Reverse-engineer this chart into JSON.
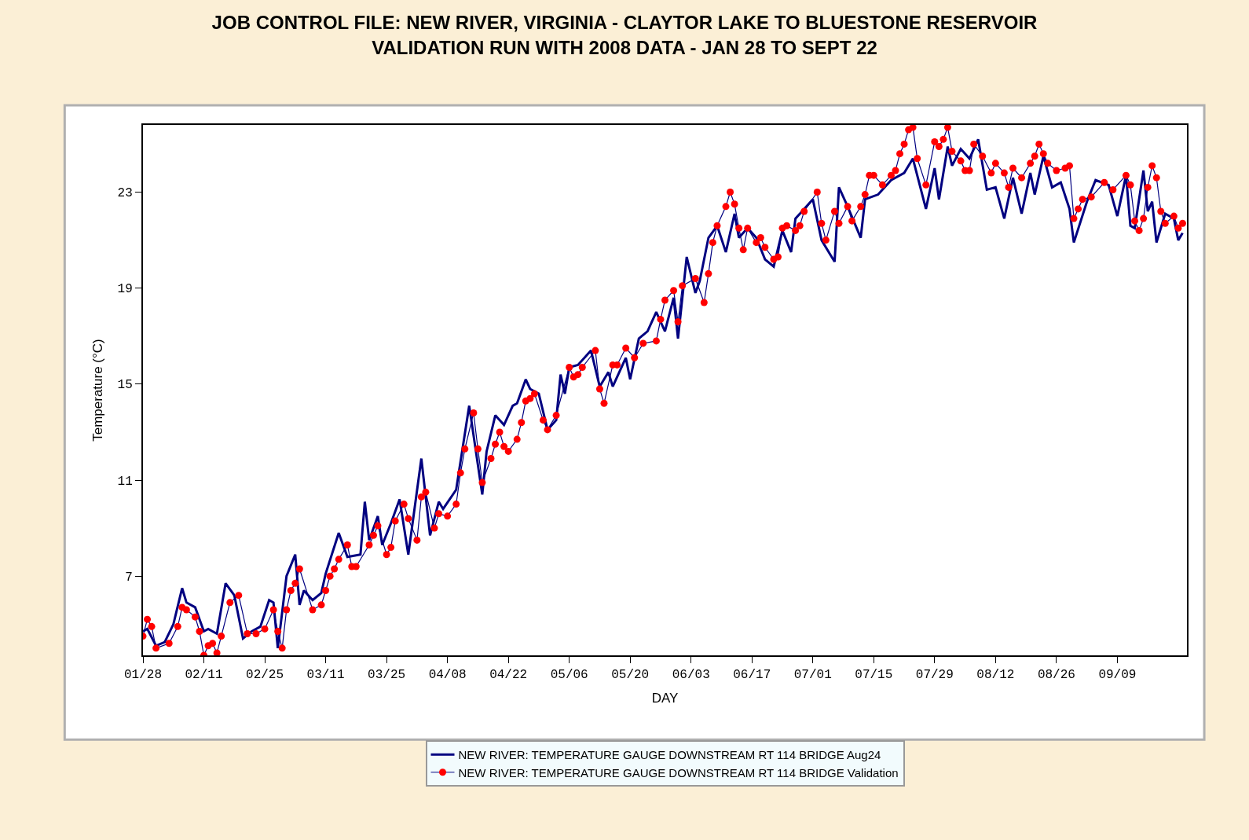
{
  "chart_data": {
    "type": "line",
    "title": "JOB CONTROL FILE: NEW RIVER, VIRGINIA - CLAYTOR LAKE TO BLUESTONE RESERVOIR\nVALIDATION RUN WITH 2008 DATA - JAN 28 TO SEPT 22",
    "xlabel": "DAY",
    "ylabel": "Temperature (°C)",
    "xlim": [
      "2008-01-28",
      "2008-09-24"
    ],
    "xticks": [
      {
        "value": "2008-01-28",
        "label": "01/28"
      },
      {
        "value": "2008-02-11",
        "label": "02/11"
      },
      {
        "value": "2008-02-25",
        "label": "02/25"
      },
      {
        "value": "2008-03-10",
        "label": "03/11"
      },
      {
        "value": "2008-03-24",
        "label": "03/25"
      },
      {
        "value": "2008-04-07",
        "label": "04/08"
      },
      {
        "value": "2008-04-21",
        "label": "04/22"
      },
      {
        "value": "2008-05-05",
        "label": "05/06"
      },
      {
        "value": "2008-05-19",
        "label": "05/20"
      },
      {
        "value": "2008-06-02",
        "label": "06/03"
      },
      {
        "value": "2008-06-16",
        "label": "06/17"
      },
      {
        "value": "2008-06-30",
        "label": "07/01"
      },
      {
        "value": "2008-07-14",
        "label": "07/15"
      },
      {
        "value": "2008-07-28",
        "label": "07/29"
      },
      {
        "value": "2008-08-11",
        "label": "08/12"
      },
      {
        "value": "2008-08-25",
        "label": "08/26"
      },
      {
        "value": "2008-09-08",
        "label": "09/09"
      }
    ],
    "ylim": [
      3.7,
      25.8
    ],
    "yticks": [
      7,
      11,
      15,
      19,
      23
    ],
    "legend": "bottom",
    "series": [
      {
        "name": "NEW RIVER: TEMPERATURE GAUGE DOWNSTREAM RT 114 BRIDGE Aug24",
        "color": "#000080",
        "marker": "none",
        "x": [
          "2008-01-28",
          "2008-01-29",
          "2008-01-31",
          "2008-02-02",
          "2008-02-04",
          "2008-02-06",
          "2008-02-07",
          "2008-02-09",
          "2008-02-11",
          "2008-02-12",
          "2008-02-14",
          "2008-02-16",
          "2008-02-18",
          "2008-02-20",
          "2008-02-22",
          "2008-02-24",
          "2008-02-26",
          "2008-02-27",
          "2008-02-28",
          "2008-03-01",
          "2008-03-03",
          "2008-03-04",
          "2008-03-05",
          "2008-03-07",
          "2008-03-09",
          "2008-03-10",
          "2008-03-13",
          "2008-03-15",
          "2008-03-18",
          "2008-03-19",
          "2008-03-20",
          "2008-03-22",
          "2008-03-23",
          "2008-03-25",
          "2008-03-27",
          "2008-03-29",
          "2008-04-01",
          "2008-04-03",
          "2008-04-05",
          "2008-04-06",
          "2008-04-09",
          "2008-04-12",
          "2008-04-15",
          "2008-04-16",
          "2008-04-18",
          "2008-04-20",
          "2008-04-22",
          "2008-04-23",
          "2008-04-25",
          "2008-04-26",
          "2008-04-28",
          "2008-04-30",
          "2008-05-02",
          "2008-05-03",
          "2008-05-04",
          "2008-05-05",
          "2008-05-07",
          "2008-05-10",
          "2008-05-12",
          "2008-05-14",
          "2008-05-15",
          "2008-05-18",
          "2008-05-19",
          "2008-05-21",
          "2008-05-23",
          "2008-05-25",
          "2008-05-27",
          "2008-05-29",
          "2008-05-30",
          "2008-06-01",
          "2008-06-03",
          "2008-06-04",
          "2008-06-06",
          "2008-06-08",
          "2008-06-10",
          "2008-06-12",
          "2008-06-13",
          "2008-06-15",
          "2008-06-17",
          "2008-06-19",
          "2008-06-21",
          "2008-06-23",
          "2008-06-25",
          "2008-06-26",
          "2008-06-30",
          "2008-07-02",
          "2008-07-04",
          "2008-07-05",
          "2008-07-06",
          "2008-07-08",
          "2008-07-11",
          "2008-07-12",
          "2008-07-15",
          "2008-07-18",
          "2008-07-21",
          "2008-07-23",
          "2008-07-26",
          "2008-07-28",
          "2008-07-29",
          "2008-07-31",
          "2008-08-01",
          "2008-08-03",
          "2008-08-05",
          "2008-08-07",
          "2008-08-09",
          "2008-08-11",
          "2008-08-13",
          "2008-08-15",
          "2008-08-17",
          "2008-08-19",
          "2008-08-20",
          "2008-08-22",
          "2008-08-24",
          "2008-08-26",
          "2008-08-28",
          "2008-08-29",
          "2008-09-01",
          "2008-09-03",
          "2008-09-06",
          "2008-09-08",
          "2008-09-10",
          "2008-09-11",
          "2008-09-12",
          "2008-09-14",
          "2008-09-15",
          "2008-09-16",
          "2008-09-17",
          "2008-09-19",
          "2008-09-21",
          "2008-09-22",
          "2008-09-23"
        ],
        "values": [
          4.7,
          4.8,
          4.1,
          4.25,
          5.0,
          6.5,
          5.9,
          5.7,
          4.7,
          4.8,
          4.6,
          6.7,
          6.2,
          4.4,
          4.7,
          4.9,
          6.0,
          5.9,
          4.0,
          7.0,
          7.9,
          5.8,
          6.4,
          6.0,
          6.3,
          7.1,
          8.8,
          7.8,
          7.9,
          10.1,
          8.5,
          9.5,
          8.3,
          9.2,
          10.2,
          7.9,
          11.9,
          8.7,
          10.1,
          9.8,
          10.6,
          14.1,
          10.4,
          12.2,
          13.7,
          13.3,
          14.1,
          14.2,
          15.2,
          14.8,
          14.6,
          13.1,
          13.5,
          15.4,
          14.6,
          15.7,
          15.8,
          16.4,
          14.9,
          15.5,
          14.9,
          16.1,
          15.2,
          16.9,
          17.2,
          18.0,
          17.2,
          18.6,
          16.9,
          20.3,
          18.8,
          19.3,
          21.1,
          21.6,
          20.5,
          22.1,
          21.1,
          21.5,
          21.1,
          20.2,
          19.9,
          21.4,
          20.5,
          21.9,
          22.7,
          21.0,
          20.4,
          20.1,
          23.2,
          22.4,
          21.1,
          22.7,
          22.9,
          23.5,
          23.8,
          24.4,
          22.3,
          24.0,
          22.7,
          24.9,
          24.1,
          24.8,
          24.4,
          25.2,
          23.1,
          23.2,
          21.9,
          23.6,
          22.1,
          23.8,
          22.9,
          24.5,
          23.2,
          23.4,
          22.3,
          20.9,
          22.6,
          23.5,
          23.3,
          22.0,
          23.7,
          21.6,
          21.5,
          23.9,
          22.2,
          22.6,
          20.9,
          22.1,
          21.9,
          21.0,
          21.3
        ]
      },
      {
        "name": "NEW RIVER: TEMPERATURE GAUGE DOWNSTREAM RT 114 BRIDGE Validation",
        "color": "#ff0000",
        "marker": "circle",
        "x": [
          "2008-01-28",
          "2008-01-29",
          "2008-01-30",
          "2008-01-31",
          "2008-02-03",
          "2008-02-05",
          "2008-02-06",
          "2008-02-07",
          "2008-02-09",
          "2008-02-10",
          "2008-02-11",
          "2008-02-12",
          "2008-02-13",
          "2008-02-14",
          "2008-02-15",
          "2008-02-17",
          "2008-02-19",
          "2008-02-21",
          "2008-02-23",
          "2008-02-25",
          "2008-02-27",
          "2008-02-28",
          "2008-02-29",
          "2008-03-01",
          "2008-03-02",
          "2008-03-03",
          "2008-03-04",
          "2008-03-07",
          "2008-03-09",
          "2008-03-10",
          "2008-03-11",
          "2008-03-12",
          "2008-03-13",
          "2008-03-15",
          "2008-03-16",
          "2008-03-17",
          "2008-03-20",
          "2008-03-21",
          "2008-03-22",
          "2008-03-24",
          "2008-03-25",
          "2008-03-26",
          "2008-03-28",
          "2008-03-29",
          "2008-03-31",
          "2008-04-01",
          "2008-04-02",
          "2008-04-04",
          "2008-04-05",
          "2008-04-07",
          "2008-04-09",
          "2008-04-10",
          "2008-04-11",
          "2008-04-13",
          "2008-04-14",
          "2008-04-15",
          "2008-04-17",
          "2008-04-18",
          "2008-04-19",
          "2008-04-20",
          "2008-04-21",
          "2008-04-23",
          "2008-04-24",
          "2008-04-25",
          "2008-04-26",
          "2008-04-27",
          "2008-04-29",
          "2008-04-30",
          "2008-05-02",
          "2008-05-05",
          "2008-05-06",
          "2008-05-07",
          "2008-05-08",
          "2008-05-11",
          "2008-05-12",
          "2008-05-13",
          "2008-05-15",
          "2008-05-16",
          "2008-05-18",
          "2008-05-20",
          "2008-05-22",
          "2008-05-25",
          "2008-05-26",
          "2008-05-27",
          "2008-05-29",
          "2008-05-30",
          "2008-05-31",
          "2008-06-03",
          "2008-06-05",
          "2008-06-06",
          "2008-06-07",
          "2008-06-08",
          "2008-06-10",
          "2008-06-11",
          "2008-06-12",
          "2008-06-13",
          "2008-06-14",
          "2008-06-15",
          "2008-06-17",
          "2008-06-18",
          "2008-06-19",
          "2008-06-21",
          "2008-06-22",
          "2008-06-23",
          "2008-06-24",
          "2008-06-26",
          "2008-06-27",
          "2008-06-28",
          "2008-07-01",
          "2008-07-02",
          "2008-07-03",
          "2008-07-05",
          "2008-07-06",
          "2008-07-08",
          "2008-07-09",
          "2008-07-11",
          "2008-07-12",
          "2008-07-13",
          "2008-07-14",
          "2008-07-16",
          "2008-07-18",
          "2008-07-19",
          "2008-07-20",
          "2008-07-21",
          "2008-07-22",
          "2008-07-23",
          "2008-07-24",
          "2008-07-26",
          "2008-07-28",
          "2008-07-29",
          "2008-07-30",
          "2008-07-31",
          "2008-08-01",
          "2008-08-03",
          "2008-08-04",
          "2008-08-05",
          "2008-08-06",
          "2008-08-08",
          "2008-08-10",
          "2008-08-11",
          "2008-08-13",
          "2008-08-14",
          "2008-08-15",
          "2008-08-17",
          "2008-08-19",
          "2008-08-20",
          "2008-08-21",
          "2008-08-22",
          "2008-08-23",
          "2008-08-25",
          "2008-08-27",
          "2008-08-28",
          "2008-08-29",
          "2008-08-30",
          "2008-08-31",
          "2008-09-02",
          "2008-09-05",
          "2008-09-07",
          "2008-09-10",
          "2008-09-11",
          "2008-09-12",
          "2008-09-13",
          "2008-09-14",
          "2008-09-15",
          "2008-09-16",
          "2008-09-17",
          "2008-09-18",
          "2008-09-19",
          "2008-09-21",
          "2008-09-22",
          "2008-09-23"
        ],
        "values": [
          4.5,
          5.2,
          4.9,
          4.0,
          4.2,
          4.9,
          5.7,
          5.6,
          5.3,
          4.7,
          3.7,
          4.1,
          4.2,
          3.8,
          4.5,
          5.9,
          6.2,
          4.6,
          4.6,
          4.8,
          5.6,
          4.7,
          4.0,
          5.6,
          6.4,
          6.7,
          7.3,
          5.6,
          5.8,
          6.4,
          7.0,
          7.3,
          7.7,
          8.3,
          7.4,
          7.4,
          8.3,
          8.7,
          9.1,
          7.9,
          8.2,
          9.3,
          10.0,
          9.4,
          8.5,
          10.3,
          10.5,
          9.0,
          9.6,
          9.5,
          10.0,
          11.3,
          12.3,
          13.8,
          12.3,
          10.9,
          11.9,
          12.5,
          13.0,
          12.4,
          12.2,
          12.7,
          13.4,
          14.3,
          14.4,
          14.6,
          13.5,
          13.1,
          13.7,
          15.7,
          15.3,
          15.4,
          15.7,
          16.4,
          14.8,
          14.2,
          15.8,
          15.8,
          16.5,
          16.1,
          16.7,
          16.8,
          17.7,
          18.5,
          18.9,
          17.6,
          19.1,
          19.4,
          18.4,
          19.6,
          20.9,
          21.6,
          22.4,
          23.0,
          22.5,
          21.5,
          20.6,
          21.5,
          20.9,
          21.1,
          20.7,
          20.2,
          20.3,
          21.5,
          21.6,
          21.4,
          21.6,
          22.2,
          23.0,
          21.7,
          21.0,
          22.2,
          21.7,
          22.4,
          21.8,
          22.4,
          22.9,
          23.7,
          23.7,
          23.3,
          23.7,
          23.9,
          24.6,
          25.0,
          25.6,
          25.7,
          24.4,
          23.3,
          25.1,
          24.9,
          25.2,
          25.7,
          24.7,
          24.3,
          23.9,
          23.9,
          25.0,
          24.5,
          23.8,
          24.2,
          23.8,
          23.2,
          24.0,
          23.6,
          24.2,
          24.5,
          25.0,
          24.6,
          24.2,
          23.9,
          24.0,
          24.1,
          21.9,
          22.3,
          22.7,
          22.8,
          23.4,
          23.1,
          23.7,
          23.3,
          21.8,
          21.4,
          21.9,
          23.2,
          24.1,
          23.6,
          22.2,
          21.7,
          22.0,
          21.5,
          21.7
        ]
      }
    ]
  }
}
